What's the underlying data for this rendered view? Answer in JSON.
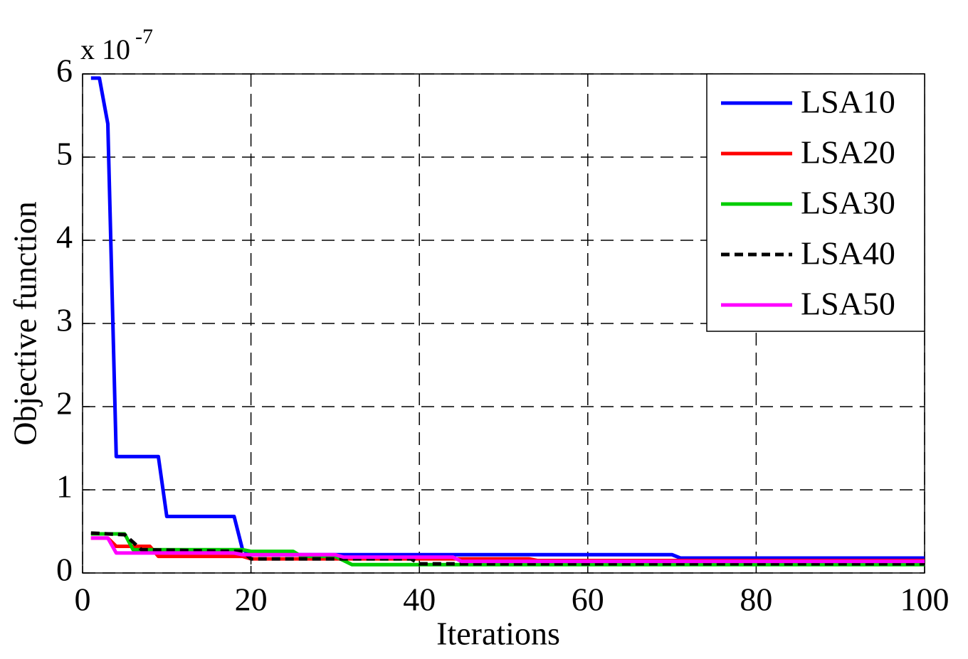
{
  "chart_data": {
    "type": "line",
    "y_label": "Objective function",
    "x_label": "Iterations",
    "y_multiplier": "x 10",
    "y_multiplier_exp": "-7",
    "xlim": [
      0,
      100
    ],
    "xticks": [
      0,
      20,
      40,
      60,
      80,
      100
    ],
    "ylim": [
      0,
      6
    ],
    "yticks": [
      0,
      1,
      2,
      3,
      4,
      5,
      6
    ],
    "grid": true,
    "legend": "upper right",
    "series": [
      {
        "name": "LSA10",
        "color": "#0000ff",
        "style": "solid",
        "x": [
          1,
          2,
          3,
          4,
          9,
          10,
          18,
          19,
          20,
          70,
          71,
          100
        ],
        "values": [
          5.95,
          5.95,
          5.4,
          1.4,
          1.4,
          0.68,
          0.68,
          0.28,
          0.22,
          0.22,
          0.18,
          0.18
        ]
      },
      {
        "name": "LSA20",
        "color": "#ff0000",
        "style": "solid",
        "x": [
          1,
          3,
          4,
          8,
          9,
          19,
          20,
          53,
          54,
          100
        ],
        "values": [
          0.42,
          0.42,
          0.32,
          0.32,
          0.2,
          0.2,
          0.17,
          0.17,
          0.15,
          0.15
        ]
      },
      {
        "name": "LSA30",
        "color": "#00cc00",
        "style": "solid",
        "x": [
          1,
          5,
          6,
          19,
          20,
          25,
          26,
          30,
          32,
          100
        ],
        "values": [
          0.47,
          0.47,
          0.28,
          0.28,
          0.26,
          0.26,
          0.2,
          0.2,
          0.1,
          0.1
        ]
      },
      {
        "name": "LSA40",
        "color": "#000000",
        "style": "dashed",
        "x": [
          1,
          5,
          7,
          19,
          20,
          39,
          40,
          100
        ],
        "values": [
          0.48,
          0.46,
          0.28,
          0.26,
          0.17,
          0.17,
          0.11,
          0.11
        ]
      },
      {
        "name": "LSA50",
        "color": "#ff00ff",
        "style": "solid",
        "x": [
          1,
          3,
          4,
          18,
          19,
          30,
          31,
          44,
          45,
          100
        ],
        "values": [
          0.42,
          0.42,
          0.24,
          0.24,
          0.22,
          0.22,
          0.19,
          0.19,
          0.14,
          0.14
        ]
      }
    ]
  }
}
